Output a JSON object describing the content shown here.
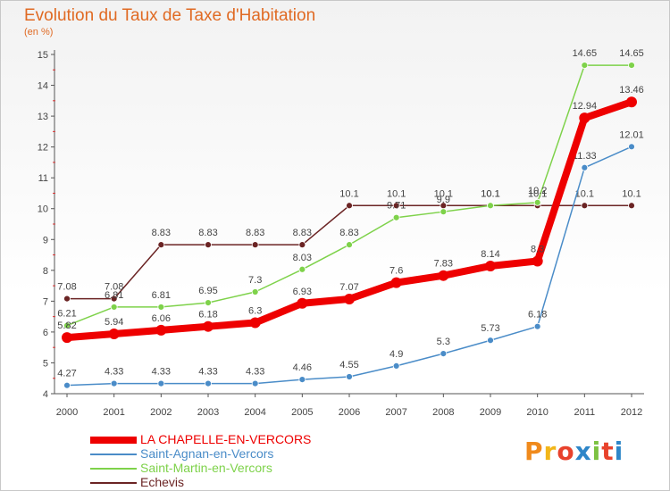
{
  "chart_data": {
    "type": "line",
    "title": "Evolution du Taux de Taxe d'Habitation",
    "ylabel": "(en %)",
    "xlabel": "",
    "x": [
      "2000",
      "2001",
      "2002",
      "2003",
      "2004",
      "2005",
      "2006",
      "2007",
      "2008",
      "2009",
      "2010",
      "2011",
      "2012"
    ],
    "ylim": [
      4,
      15
    ],
    "yticks": [
      "4",
      "5",
      "6",
      "7",
      "8",
      "9",
      "10",
      "11",
      "12",
      "13",
      "14",
      "15"
    ],
    "grid": false,
    "legend_position": "bottom-left",
    "series": [
      {
        "name": "Echevis",
        "color": "#6b2424",
        "values": [
          7.08,
          7.08,
          8.83,
          8.83,
          8.83,
          8.83,
          10.1,
          10.1,
          10.1,
          10.1,
          10.1,
          10.1,
          10.1
        ],
        "labels": [
          "7.08",
          "7.08",
          "8.83",
          "8.83",
          "8.83",
          "8.83",
          "10.1",
          "10.1",
          "10.1",
          "10.1",
          "10.1",
          "10.1",
          "10.1"
        ]
      },
      {
        "name": "Saint-Martin-en-Vercors",
        "color": "#7ed24a",
        "values": [
          6.21,
          6.81,
          6.81,
          6.95,
          7.3,
          8.03,
          8.83,
          9.71,
          9.9,
          10.1,
          10.2,
          14.65,
          14.65
        ],
        "labels": [
          "6.21",
          "6.81",
          "6.81",
          "6.95",
          "7.3",
          "8.03",
          "8.83",
          "9.71",
          "9.9",
          "10.1",
          "10.2",
          "14.65",
          "14.65"
        ]
      },
      {
        "name": "Saint-Agnan-en-Vercors",
        "color": "#4a8cc8",
        "values": [
          4.27,
          4.33,
          4.33,
          4.33,
          4.33,
          4.46,
          4.55,
          4.9,
          5.3,
          5.73,
          6.18,
          11.33,
          12.01
        ],
        "labels": [
          "4.27",
          "4.33",
          "4.33",
          "4.33",
          "4.33",
          "4.46",
          "4.55",
          "4.9",
          "5.3",
          "5.73",
          "6.18",
          "11.33",
          "12.01"
        ]
      },
      {
        "name": "LA CHAPELLE-EN-VERCORS",
        "color": "#ee0000",
        "values": [
          5.82,
          5.94,
          6.06,
          6.18,
          6.3,
          6.93,
          7.07,
          7.6,
          7.83,
          8.14,
          8.3,
          12.94,
          13.46
        ],
        "labels": [
          "5.82",
          "5.94",
          "6.06",
          "6.18",
          "6.3",
          "6.93",
          "7.07",
          "7.6",
          "7.83",
          "8.14",
          "8.3",
          "12.94",
          "13.46"
        ]
      }
    ]
  },
  "legend": {
    "items": [
      {
        "label": "LA CHAPELLE-EN-VERCORS",
        "color": "#ee0000"
      },
      {
        "label": "Saint-Agnan-en-Vercors",
        "color": "#4a8cc8"
      },
      {
        "label": "Saint-Martin-en-Vercors",
        "color": "#7ed24a"
      },
      {
        "label": "Echevis",
        "color": "#6b2424"
      }
    ]
  },
  "logo": {
    "text": "Proxiti",
    "colors": [
      "#f08a1c",
      "#f2b619",
      "#e8422c",
      "#2e86c8",
      "#7cc242",
      "#e8422c",
      "#2e86c8"
    ]
  }
}
